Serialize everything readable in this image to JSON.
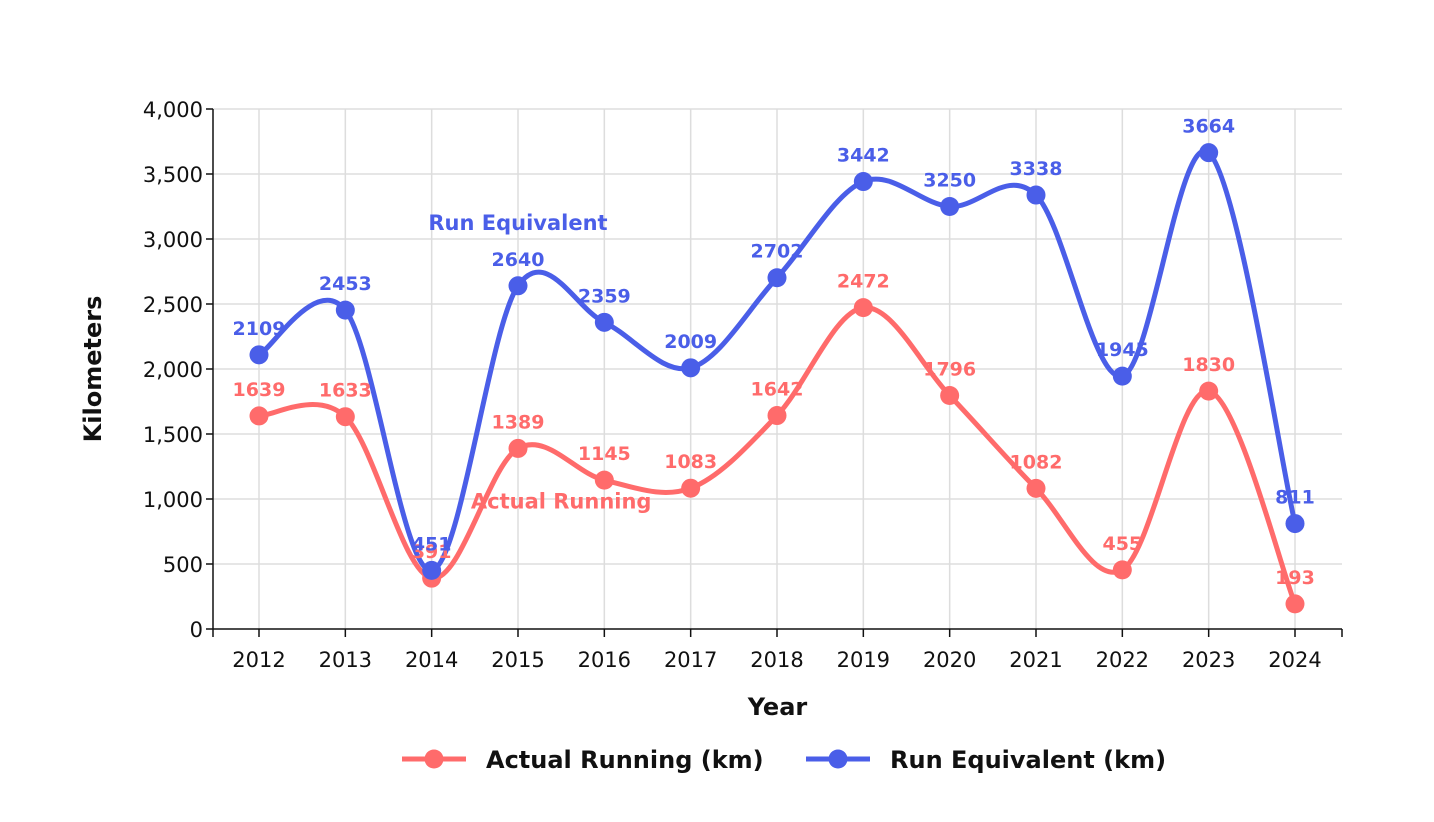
{
  "chart_data": {
    "type": "line",
    "x": [
      "2012",
      "2013",
      "2014",
      "2015",
      "2016",
      "2017",
      "2018",
      "2019",
      "2020",
      "2021",
      "2022",
      "2023",
      "2024"
    ],
    "series": [
      {
        "name": "Actual Running (km)",
        "inline_label": "Actual Running",
        "color": "#ff6b6b",
        "values": [
          1639,
          1633,
          391,
          1389,
          1145,
          1083,
          1642,
          2472,
          1796,
          1082,
          455,
          1830,
          193
        ]
      },
      {
        "name": "Run Equivalent (km)",
        "inline_label": "Run Equivalent",
        "color": "#4a5ee8",
        "values": [
          2109,
          2453,
          451,
          2640,
          2359,
          2009,
          2702,
          3442,
          3250,
          3338,
          1945,
          3664,
          811
        ]
      }
    ],
    "xlabel": "Year",
    "ylabel": "Kilometers",
    "ylim": [
      0,
      4000
    ],
    "yticks": [
      0,
      500,
      1000,
      1500,
      2000,
      2500,
      3000,
      3500,
      4000
    ],
    "ytick_labels": [
      "0",
      "500",
      "1,000",
      "1,500",
      "2,000",
      "2,500",
      "3,000",
      "3,500",
      "4,000"
    ],
    "grid": true,
    "legend_position": "bottom"
  }
}
